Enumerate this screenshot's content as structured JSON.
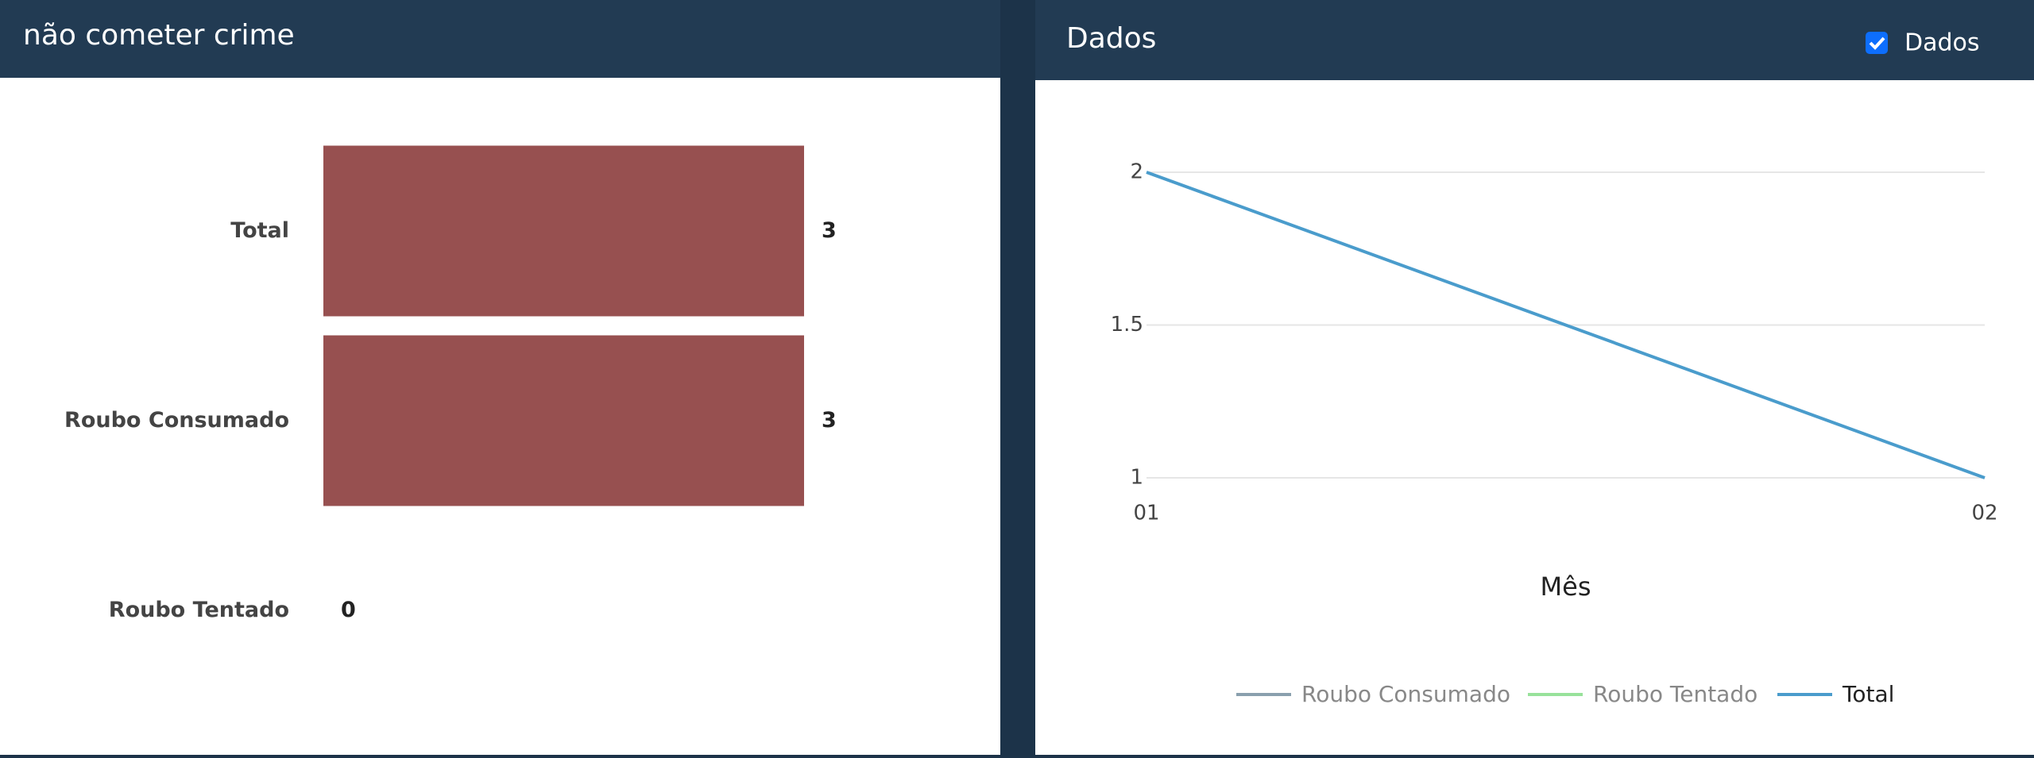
{
  "header_controls": {
    "checkbox_label": "Dados",
    "checked": true
  },
  "chart_data": [
    {
      "type": "hbar",
      "title": "não cometer crime",
      "categories": [
        "Total",
        "Roubo Consumado",
        "Roubo Tentado"
      ],
      "values": [
        3,
        3,
        0
      ],
      "color": "#975050",
      "xlim": [
        0,
        3
      ]
    },
    {
      "type": "line",
      "title": "Dados",
      "x_label": "Mês",
      "categories": [
        "01",
        "02"
      ],
      "ylim": [
        1,
        2
      ],
      "yticks": [
        1,
        1.5,
        2
      ],
      "grid": true,
      "series": [
        {
          "name": "Roubo Consumado",
          "color": "#8aa0ae",
          "values": [
            null,
            null
          ],
          "visible": false
        },
        {
          "name": "Roubo Tentado",
          "color": "#98e29b",
          "values": [
            null,
            null
          ],
          "visible": false
        },
        {
          "name": "Total",
          "color": "#4a9ccc",
          "values": [
            2,
            1
          ],
          "visible": true
        }
      ]
    }
  ]
}
